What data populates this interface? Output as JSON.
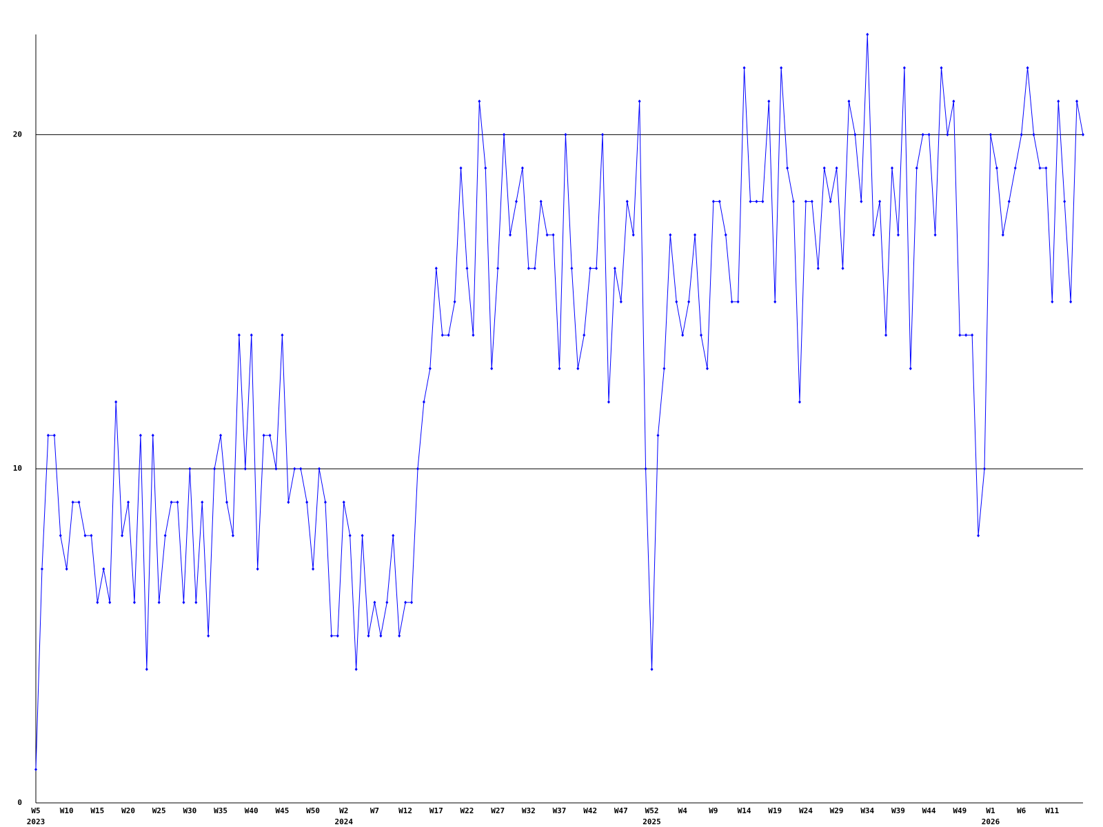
{
  "chart_data": {
    "type": "line",
    "categories": [
      "W5",
      null,
      null,
      null,
      null,
      "W10",
      null,
      null,
      null,
      null,
      "W15",
      null,
      null,
      null,
      null,
      "W20",
      null,
      null,
      null,
      null,
      "W25",
      null,
      null,
      null,
      null,
      "W30",
      null,
      null,
      null,
      null,
      "W35",
      null,
      null,
      null,
      null,
      "W40",
      null,
      null,
      null,
      null,
      "W45",
      null,
      null,
      null,
      null,
      "W50",
      null,
      null,
      null,
      null,
      "W2",
      null,
      null,
      null,
      null,
      "W7",
      null,
      null,
      null,
      null,
      "W12",
      null,
      null,
      null,
      null,
      "W17",
      null,
      null,
      null,
      null,
      "W22",
      null,
      null,
      null,
      null,
      "W27",
      null,
      null,
      null,
      null,
      "W32",
      null,
      null,
      null,
      null,
      "W37",
      null,
      null,
      null,
      null,
      "W42",
      null,
      null,
      null,
      null,
      "W47",
      null,
      null,
      null,
      null,
      "W52",
      null,
      null,
      null,
      null,
      "W4",
      null,
      null,
      null,
      null,
      "W9",
      null,
      null,
      null,
      null,
      "W14",
      null,
      null,
      null,
      null,
      "W19",
      null,
      null,
      null,
      null,
      "W24",
      null,
      null,
      null,
      null,
      "W29",
      null,
      null,
      null,
      null,
      "W34",
      null,
      null,
      null,
      null,
      "W39",
      null,
      null,
      null,
      null,
      "W44",
      null,
      null,
      null,
      null,
      "W49",
      null,
      null,
      null,
      null,
      "W1",
      null,
      null,
      null,
      null,
      "W6",
      null,
      null,
      null,
      null,
      "W11",
      null,
      null,
      null,
      null,
      null
    ],
    "category_years": [
      "2023",
      null,
      null,
      null,
      null,
      null,
      null,
      null,
      null,
      null,
      null,
      null,
      null,
      null,
      null,
      null,
      null,
      null,
      null,
      null,
      null,
      null,
      null,
      null,
      null,
      null,
      null,
      null,
      null,
      null,
      null,
      null,
      null,
      null,
      null,
      null,
      null,
      null,
      null,
      null,
      null,
      null,
      null,
      null,
      null,
      null,
      null,
      null,
      null,
      null,
      "2024",
      null,
      null,
      null,
      null,
      null,
      null,
      null,
      null,
      null,
      null,
      null,
      null,
      null,
      null,
      null,
      null,
      null,
      null,
      null,
      null,
      null,
      null,
      null,
      null,
      null,
      null,
      null,
      null,
      null,
      null,
      null,
      null,
      null,
      null,
      null,
      null,
      null,
      null,
      null,
      null,
      null,
      null,
      null,
      null,
      null,
      null,
      null,
      null,
      null,
      "2025",
      null,
      null,
      null,
      null,
      null,
      null,
      null,
      null,
      null,
      null,
      null,
      null,
      null,
      null,
      null,
      null,
      null,
      null,
      null,
      null,
      null,
      null,
      null,
      null,
      null,
      null,
      null,
      null,
      null,
      null,
      null,
      null,
      null,
      null,
      null,
      null,
      null,
      null,
      null,
      null,
      null,
      null,
      null,
      null,
      null,
      null,
      null,
      null,
      null,
      null,
      null,
      null,
      null,
      null,
      "2026",
      null,
      null,
      null,
      null,
      null,
      null,
      null,
      null,
      null,
      null,
      null,
      null,
      null,
      null,
      null
    ],
    "series": [
      {
        "color": "#0000ff",
        "values": [
          1,
          7,
          11,
          11,
          8,
          7,
          9,
          9,
          8,
          8,
          6,
          7,
          6,
          12,
          8,
          9,
          6,
          11,
          4,
          11,
          6,
          8,
          9,
          9,
          6,
          10,
          6,
          9,
          5,
          10,
          11,
          9,
          8,
          14,
          10,
          14,
          7,
          11,
          11,
          10,
          14,
          9,
          10,
          10,
          9,
          7,
          10,
          9,
          5,
          5,
          9,
          8,
          4,
          8,
          5,
          6,
          5,
          6,
          8,
          5,
          6,
          6,
          10,
          12,
          13,
          16,
          14,
          14,
          15,
          19,
          16,
          14,
          21,
          19,
          13,
          16,
          20,
          17,
          18,
          19,
          16,
          16,
          18,
          17,
          17,
          13,
          20,
          16,
          13,
          14,
          16,
          16,
          20,
          12,
          16,
          15,
          18,
          17,
          21,
          10,
          4,
          11,
          13,
          17,
          15,
          14,
          15,
          17,
          14,
          13,
          18,
          18,
          17,
          15,
          15,
          22,
          18,
          18,
          18,
          21,
          15,
          22,
          19,
          18,
          12,
          18,
          18,
          16,
          19,
          18,
          19,
          16,
          21,
          20,
          18,
          23,
          17,
          18,
          14,
          19,
          17,
          22,
          13,
          19,
          20,
          20,
          17,
          22,
          20,
          21,
          14,
          14,
          14,
          8,
          10,
          20,
          19,
          17,
          18,
          19,
          20,
          22,
          20,
          19,
          19,
          15,
          21,
          18,
          15,
          21,
          20
        ]
      }
    ],
    "ylim": [
      0,
      23
    ],
    "yticks": [
      0,
      10,
      20
    ],
    "grid": true
  }
}
